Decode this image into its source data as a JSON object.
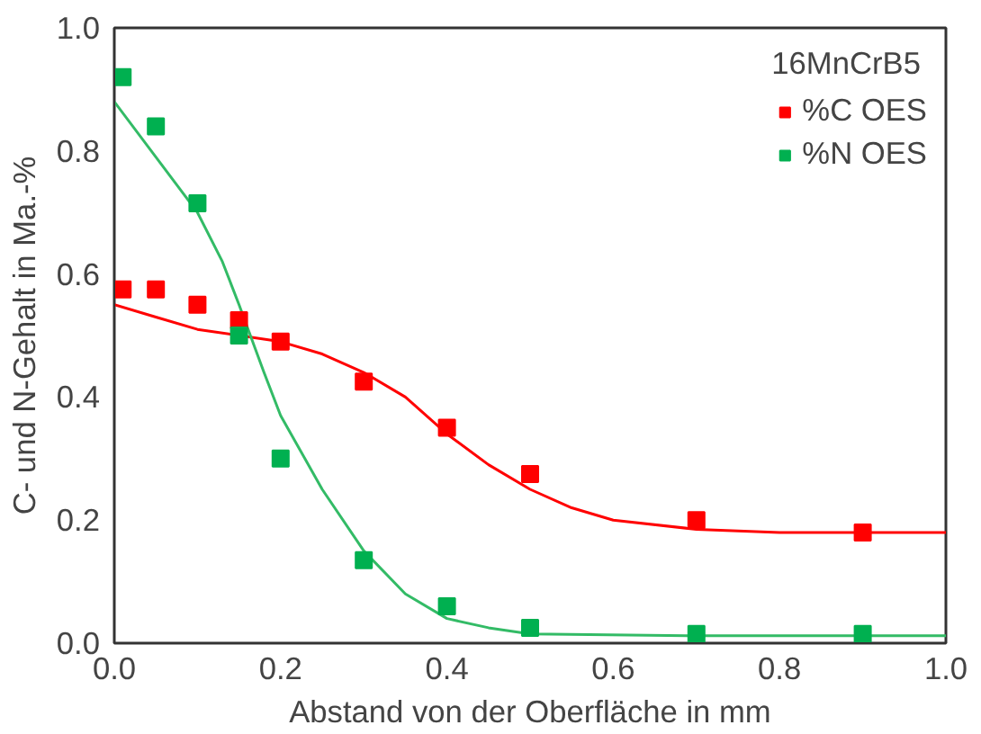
{
  "chart_data": {
    "type": "scatter",
    "xlabel": "Abstand von der Oberfläche in mm",
    "ylabel": "C- und N-Gehalt in Ma.-%",
    "legend_title": "16MnCrB5",
    "legend": "top right",
    "grid": false,
    "marker": "square",
    "xlim": [
      0,
      1
    ],
    "xticks": [
      {
        "value": 0,
        "label": "0.0"
      },
      0.2,
      0.4,
      0.6,
      0.8,
      {
        "value": 1,
        "label": "1.0"
      }
    ],
    "ylim": [
      0,
      1
    ],
    "yticks": [
      {
        "value": 0,
        "label": "0.0"
      },
      0.2,
      0.4,
      0.6,
      0.8,
      {
        "value": 1,
        "label": "1.0"
      }
    ],
    "series": [
      {
        "type": "line",
        "marker": "none",
        "color": "#ff0000",
        "x": [
          0,
          0.05,
          0.1,
          0.2,
          0.25,
          0.3,
          0.35,
          0.4,
          0.45,
          0.5,
          0.55,
          0.6,
          0.7,
          0.8,
          1.0
        ],
        "values": [
          0.55,
          0.53,
          0.51,
          0.49,
          0.47,
          0.44,
          0.4,
          0.34,
          0.29,
          0.25,
          0.22,
          0.2,
          0.185,
          0.18,
          0.18
        ]
      },
      {
        "type": "line",
        "marker": "none",
        "color": "#33bb66",
        "x": [
          0,
          0.05,
          0.1,
          0.13,
          0.15,
          0.18,
          0.2,
          0.25,
          0.3,
          0.35,
          0.4,
          0.45,
          0.5,
          0.7,
          1.0
        ],
        "values": [
          0.88,
          0.79,
          0.7,
          0.62,
          0.55,
          0.44,
          0.37,
          0.25,
          0.15,
          0.08,
          0.04,
          0.025,
          0.015,
          0.012,
          0.012
        ]
      },
      {
        "name": "%C OES",
        "color": "#ff0000",
        "x": [
          0.01,
          0.05,
          0.1,
          0.15,
          0.2,
          0.3,
          0.4,
          0.5,
          0.7,
          0.9
        ],
        "values": [
          0.575,
          0.575,
          0.55,
          0.525,
          0.49,
          0.425,
          0.35,
          0.275,
          0.2,
          0.18
        ]
      },
      {
        "name": "%N OES",
        "color": "#00b050",
        "x": [
          0.01,
          0.05,
          0.1,
          0.15,
          0.2,
          0.3,
          0.4,
          0.5,
          0.7,
          0.9
        ],
        "values": [
          0.92,
          0.84,
          0.715,
          0.5,
          0.3,
          0.135,
          0.06,
          0.025,
          0.015,
          0.015
        ]
      }
    ]
  }
}
